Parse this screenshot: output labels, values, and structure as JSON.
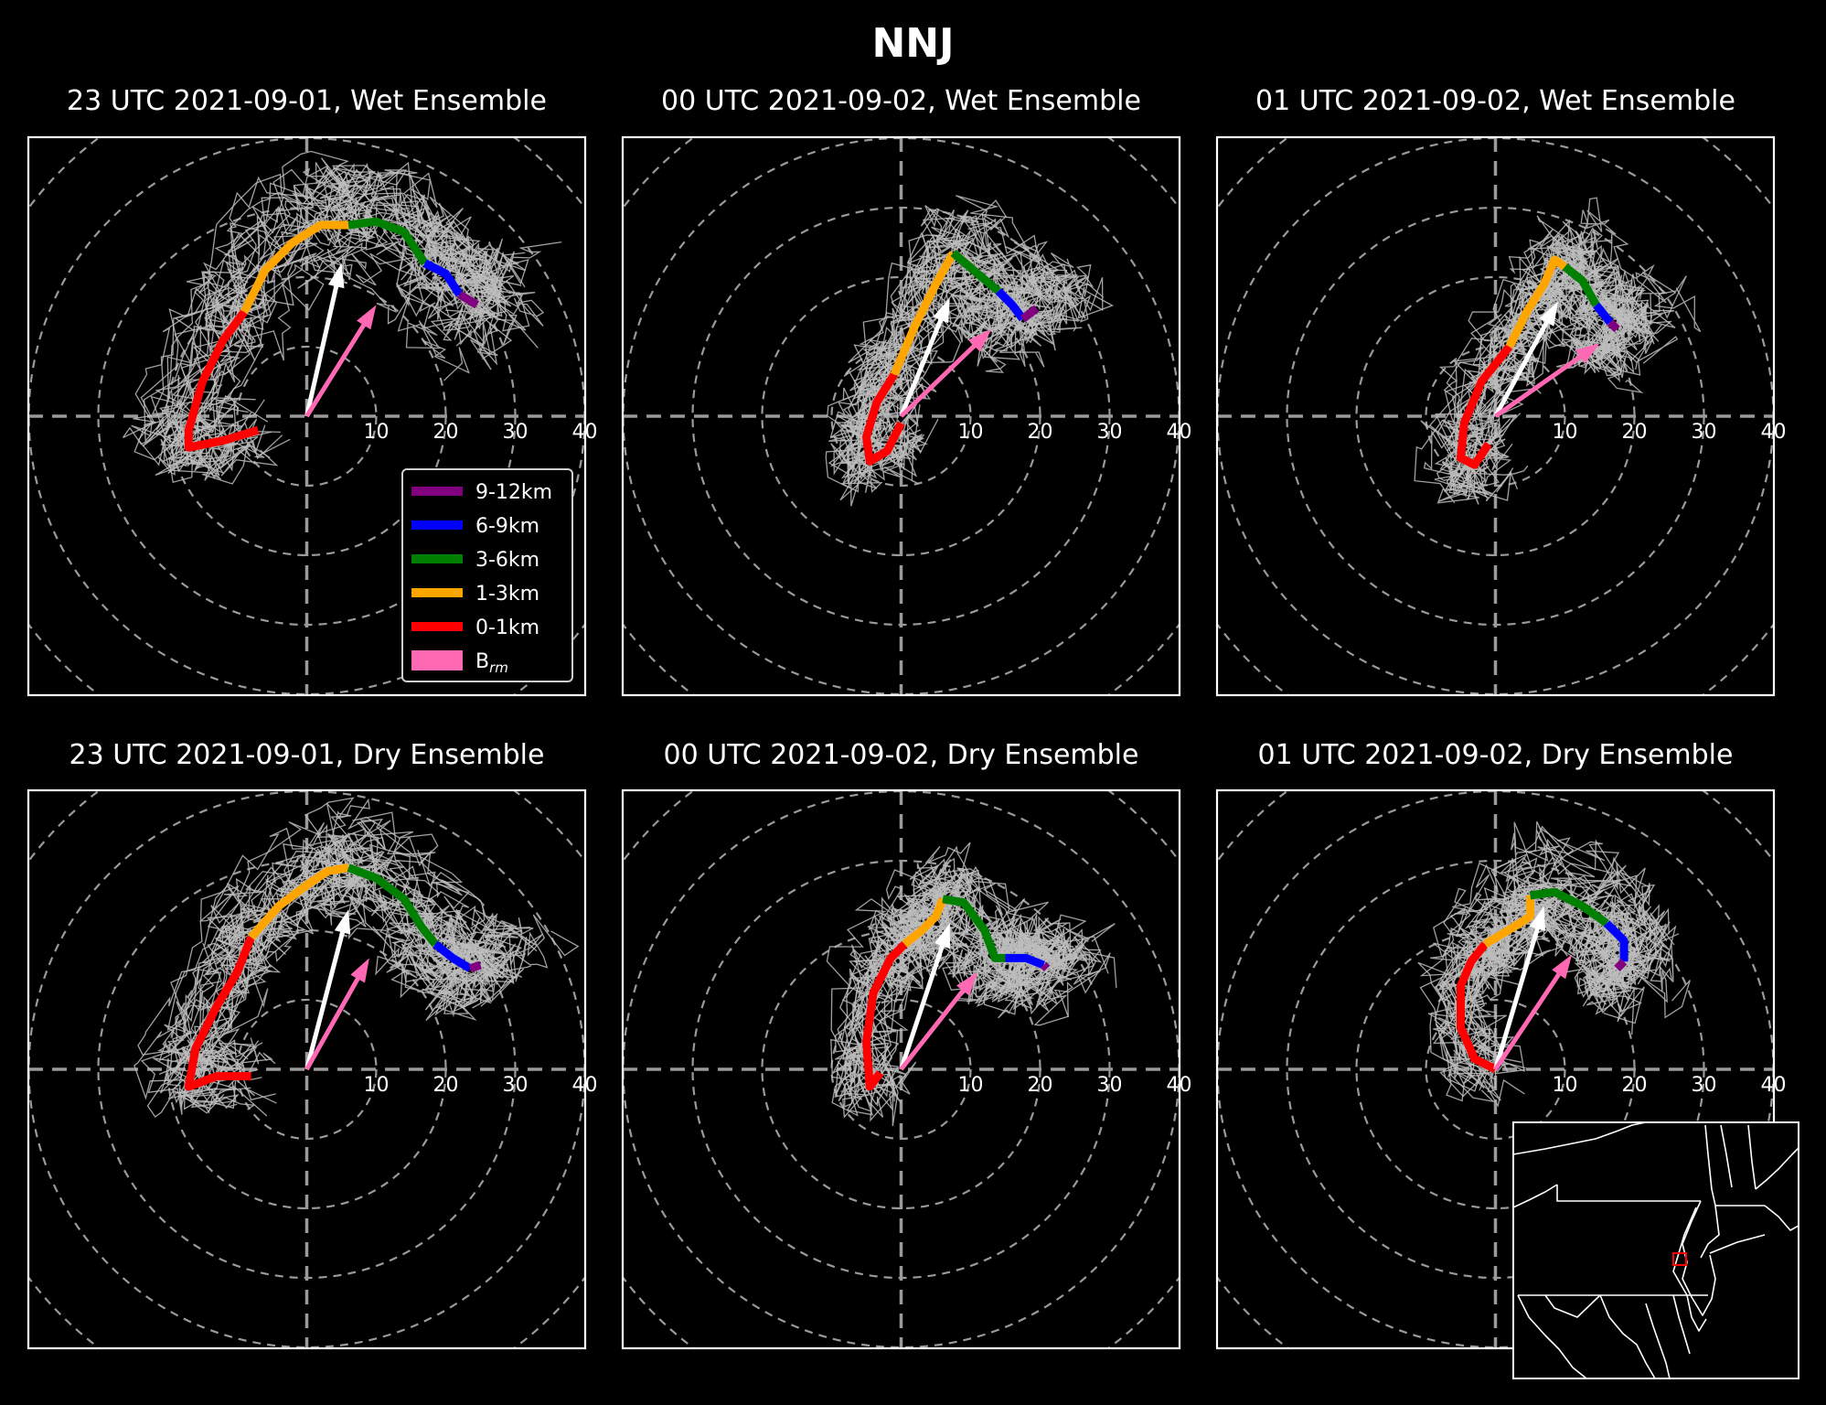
{
  "figure": {
    "title": "NNJ",
    "colors": {
      "background": "#000000",
      "frame": "#ffffff",
      "rings": "#9a9a9a",
      "ensemble_members": "#bdbdbd",
      "bunkers_vector": "#ff69b4",
      "mean_shear_vector": "#ffffff",
      "inset_box": "#ff0000"
    }
  },
  "chart_data": [
    {
      "type": "hodograph",
      "title": "23 UTC 2021-09-01, Wet Ensemble",
      "rings": [
        10,
        20,
        30,
        40
      ],
      "ring_labels": [
        "10",
        "20",
        "30",
        "40"
      ],
      "xlim": [
        -40,
        40
      ],
      "ylim": [
        -40,
        40
      ],
      "grid": true,
      "legend_position": "lower-right",
      "legend": [
        {
          "label": "9-12km",
          "color": "#800080"
        },
        {
          "label": "6-9km",
          "color": "#0000ff"
        },
        {
          "label": "3-6km",
          "color": "#008000"
        },
        {
          "label": "1-3km",
          "color": "#ffa500"
        },
        {
          "label": "0-1km",
          "color": "#ff0000"
        },
        {
          "label": "B",
          "sub": "rm",
          "color": "#ff69b4"
        }
      ],
      "mean_hodograph": [
        {
          "layer": "0-1km",
          "color": "#ff0000",
          "u": [
            -7,
            -12,
            -17,
            -17,
            -15,
            -12,
            -9
          ],
          "v": [
            -2,
            -3.5,
            -4.5,
            -2,
            5,
            11,
            15
          ]
        },
        {
          "layer": "1-3km",
          "color": "#ffa500",
          "u": [
            -9,
            -6,
            -2,
            2,
            6
          ],
          "v": [
            15,
            21,
            25,
            27.5,
            27.5
          ]
        },
        {
          "layer": "3-6km",
          "color": "#008000",
          "u": [
            6,
            10,
            14,
            17
          ],
          "v": [
            27.5,
            28,
            26.5,
            22
          ]
        },
        {
          "layer": "6-9km",
          "color": "#0000ff",
          "u": [
            17,
            20,
            22
          ],
          "v": [
            22,
            20.5,
            17.5
          ]
        },
        {
          "layer": "9-12km",
          "color": "#800080",
          "u": [
            22,
            24.5
          ],
          "v": [
            17.5,
            16
          ]
        }
      ],
      "mean_shear_vector": {
        "u": 5,
        "v": 22
      },
      "bunkers_rm": {
        "u": 10,
        "v": 16
      },
      "ensemble_spread": 2.5
    },
    {
      "type": "hodograph",
      "title": "00 UTC 2021-09-02, Wet Ensemble",
      "rings": [
        10,
        20,
        30,
        40
      ],
      "ring_labels": [
        "10",
        "20",
        "30",
        "40"
      ],
      "xlim": [
        -40,
        40
      ],
      "ylim": [
        -40,
        40
      ],
      "grid": true,
      "mean_hodograph": [
        {
          "layer": "0-1km",
          "color": "#ff0000",
          "u": [
            0,
            -2,
            -4.5,
            -5,
            -3.5,
            -1
          ],
          "v": [
            -1,
            -5,
            -6.5,
            -3,
            2,
            6
          ]
        },
        {
          "layer": "1-3km",
          "color": "#ffa500",
          "u": [
            -1,
            2,
            5,
            7.5
          ],
          "v": [
            6,
            13,
            19,
            23.5
          ]
        },
        {
          "layer": "3-6km",
          "color": "#008000",
          "u": [
            7.5,
            11,
            14
          ],
          "v": [
            23.5,
            20.5,
            18
          ]
        },
        {
          "layer": "6-9km",
          "color": "#0000ff",
          "u": [
            14,
            16,
            17.5
          ],
          "v": [
            18,
            16,
            14
          ]
        },
        {
          "layer": "9-12km",
          "color": "#800080",
          "u": [
            17.5,
            19.5
          ],
          "v": [
            14,
            15.5
          ]
        }
      ],
      "mean_shear_vector": {
        "u": 7,
        "v": 17
      },
      "bunkers_rm": {
        "u": 13,
        "v": 12.5
      },
      "ensemble_spread": 2.5
    },
    {
      "type": "hodograph",
      "title": "01 UTC 2021-09-02, Wet Ensemble",
      "rings": [
        10,
        20,
        30,
        40
      ],
      "ring_labels": [
        "10",
        "20",
        "30",
        "40"
      ],
      "xlim": [
        -40,
        40
      ],
      "ylim": [
        -40,
        40
      ],
      "grid": true,
      "mean_hodograph": [
        {
          "layer": "0-1km",
          "color": "#ff0000",
          "u": [
            -1,
            -3,
            -5,
            -4.5,
            -2,
            2
          ],
          "v": [
            -4,
            -7,
            -6,
            -1,
            5,
            10
          ]
        },
        {
          "layer": "1-3km",
          "color": "#ffa500",
          "u": [
            2,
            4.5,
            7,
            8.5,
            10
          ],
          "v": [
            10,
            15,
            19,
            22.5,
            21.5
          ]
        },
        {
          "layer": "3-6km",
          "color": "#008000",
          "u": [
            10,
            12.5,
            14.5
          ],
          "v": [
            21.5,
            19.5,
            16
          ]
        },
        {
          "layer": "6-9km",
          "color": "#0000ff",
          "u": [
            14.5,
            16.5
          ],
          "v": [
            16,
            13.5
          ]
        },
        {
          "layer": "9-12km",
          "color": "#800080",
          "u": [
            16.5,
            17.5
          ],
          "v": [
            13.5,
            12.5
          ]
        }
      ],
      "mean_shear_vector": {
        "u": 9,
        "v": 16.5
      },
      "bunkers_rm": {
        "u": 15,
        "v": 10.5
      },
      "ensemble_spread": 2.5
    },
    {
      "type": "hodograph",
      "title": "23 UTC 2021-09-01, Dry Ensemble",
      "rings": [
        10,
        20,
        30,
        40
      ],
      "ring_labels": [
        "10",
        "20",
        "30",
        "40"
      ],
      "xlim": [
        -40,
        40
      ],
      "ylim": [
        -40,
        40
      ],
      "grid": true,
      "mean_hodograph": [
        {
          "layer": "0-1km",
          "color": "#ff0000",
          "u": [
            -8,
            -13,
            -17,
            -16,
            -13,
            -10,
            -8
          ],
          "v": [
            -1,
            -1,
            -2.5,
            3,
            9,
            14,
            19
          ]
        },
        {
          "layer": "1-3km",
          "color": "#ffa500",
          "u": [
            -8,
            -4,
            0,
            3,
            6
          ],
          "v": [
            19,
            23.5,
            26.5,
            28.5,
            29
          ]
        },
        {
          "layer": "3-6km",
          "color": "#008000",
          "u": [
            6,
            10,
            14,
            16.5,
            18.5
          ],
          "v": [
            29,
            27.5,
            24.5,
            20.5,
            18
          ]
        },
        {
          "layer": "6-9km",
          "color": "#0000ff",
          "u": [
            18.5,
            21,
            23.5
          ],
          "v": [
            18,
            16,
            14.5
          ]
        },
        {
          "layer": "9-12km",
          "color": "#800080",
          "u": [
            23.5,
            25
          ],
          "v": [
            14.5,
            15
          ]
        }
      ],
      "mean_shear_vector": {
        "u": 6,
        "v": 23
      },
      "bunkers_rm": {
        "u": 9,
        "v": 16
      },
      "ensemble_spread": 2.5
    },
    {
      "type": "hodograph",
      "title": "00 UTC 2021-09-02, Dry Ensemble",
      "rings": [
        10,
        20,
        30,
        40
      ],
      "ring_labels": [
        "10",
        "20",
        "30",
        "40"
      ],
      "xlim": [
        -40,
        40
      ],
      "ylim": [
        -40,
        40
      ],
      "grid": true,
      "mean_hodograph": [
        {
          "layer": "0-1km",
          "color": "#ff0000",
          "u": [
            -3,
            -4.5,
            -5,
            -4,
            -1.5,
            0.5
          ],
          "v": [
            -0.5,
            -2.5,
            4,
            11,
            16,
            18
          ]
        },
        {
          "layer": "1-3km",
          "color": "#ffa500",
          "u": [
            0.5,
            3,
            5,
            6
          ],
          "v": [
            18,
            20,
            22,
            24.5
          ]
        },
        {
          "layer": "3-6km",
          "color": "#008000",
          "u": [
            6,
            9,
            12,
            13.5,
            15
          ],
          "v": [
            24.5,
            24,
            20,
            16,
            16
          ]
        },
        {
          "layer": "6-9km",
          "color": "#0000ff",
          "u": [
            15,
            18,
            20.5
          ],
          "v": [
            16,
            16,
            15
          ]
        },
        {
          "layer": "9-12km",
          "color": "#800080",
          "u": [
            20.5,
            21
          ],
          "v": [
            15,
            14.5
          ]
        }
      ],
      "mean_shear_vector": {
        "u": 7,
        "v": 21
      },
      "bunkers_rm": {
        "u": 11,
        "v": 14
      },
      "ensemble_spread": 2.5
    },
    {
      "type": "hodograph",
      "title": "01 UTC 2021-09-02, Dry Ensemble",
      "rings": [
        10,
        20,
        30,
        40
      ],
      "ring_labels": [
        "10",
        "20",
        "30",
        "40"
      ],
      "xlim": [
        -40,
        40
      ],
      "ylim": [
        -40,
        40
      ],
      "grid": true,
      "mean_hodograph": [
        {
          "layer": "0-1km",
          "color": "#ff0000",
          "u": [
            0,
            -3,
            -5,
            -5,
            -3.5,
            -1.5
          ],
          "v": [
            0,
            1.5,
            6,
            12,
            15.5,
            18
          ]
        },
        {
          "layer": "1-3km",
          "color": "#ffa500",
          "u": [
            -1.5,
            1,
            3.5,
            5,
            5
          ],
          "v": [
            18,
            19.5,
            21,
            22,
            25
          ]
        },
        {
          "layer": "3-6km",
          "color": "#008000",
          "u": [
            5,
            8.5,
            12.5,
            16
          ],
          "v": [
            25,
            25.5,
            23.5,
            21
          ]
        },
        {
          "layer": "6-9km",
          "color": "#0000ff",
          "u": [
            16,
            18.5,
            18.5
          ],
          "v": [
            21,
            18.5,
            15.5
          ]
        },
        {
          "layer": "9-12km",
          "color": "#800080",
          "u": [
            18.5,
            17.5
          ],
          "v": [
            15.5,
            14.5
          ]
        }
      ],
      "mean_shear_vector": {
        "u": 7,
        "v": 23.5
      },
      "bunkers_rm": {
        "u": 11,
        "v": 16.5
      },
      "ensemble_spread": 2.5
    }
  ],
  "inset_map": {
    "description_free": true,
    "region_box_color": "#ff0000"
  }
}
